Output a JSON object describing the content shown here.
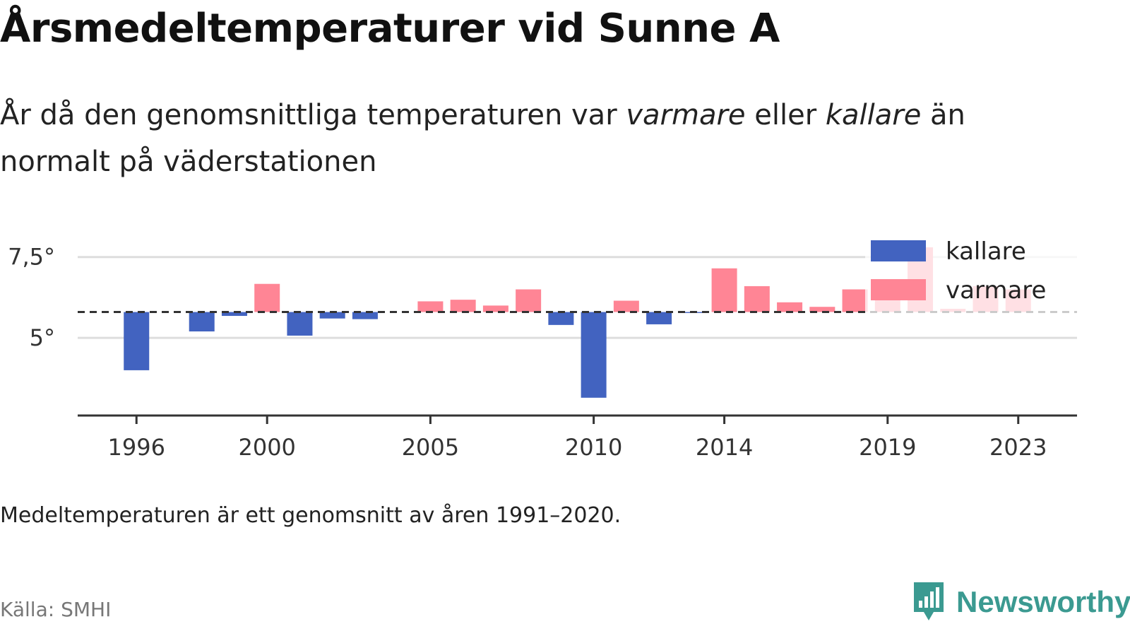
{
  "header": {
    "title": "Årsmedeltemperaturer vid Sunne A",
    "subtitle_parts": [
      "År då den genomsnittliga temperaturen var ",
      "varmare",
      " eller ",
      "kallare",
      " än normalt på väderstationen"
    ]
  },
  "footer": {
    "note": "Medeltemperaturen är ett genomsnitt av åren 1991–2020.",
    "source": "Källa: SMHI",
    "brand": "Newsworthy"
  },
  "colors": {
    "kallare": "#4263c0",
    "varmare": "#ff8595",
    "baseline": "#333333",
    "grid": "#dddddd",
    "brand": "#3b9a91"
  },
  "chart_data": {
    "type": "bar",
    "baseline": 5.8,
    "ylim": [
      2.6,
      7.8
    ],
    "y_ticks": [
      {
        "value": 5,
        "label": "5°"
      },
      {
        "value": 7.5,
        "label": "7,5°"
      }
    ],
    "x_ticks": [
      1996,
      2000,
      2005,
      2010,
      2014,
      2019,
      2023
    ],
    "xlim": [
      1994.2,
      2024.8
    ],
    "grid": "horizontal",
    "legend": {
      "position": "top-right",
      "entries": [
        {
          "key": "kallare",
          "label": "kallare"
        },
        {
          "key": "varmare",
          "label": "varmare"
        }
      ]
    },
    "x": [
      1996,
      1997,
      1998,
      1999,
      2000,
      2001,
      2002,
      2003,
      2004,
      2005,
      2006,
      2007,
      2008,
      2009,
      2010,
      2011,
      2012,
      2013,
      2014,
      2015,
      2016,
      2017,
      2018,
      2019,
      2020,
      2021,
      2022,
      2023,
      2024
    ],
    "values": [
      4.0,
      null,
      5.2,
      5.68,
      6.67,
      5.07,
      5.6,
      5.58,
      null,
      6.13,
      6.18,
      6.0,
      6.5,
      5.4,
      3.15,
      6.15,
      5.42,
      5.77,
      7.15,
      6.6,
      6.1,
      5.96,
      6.5,
      6.5,
      7.8,
      5.9,
      6.6,
      6.5,
      null
    ]
  }
}
